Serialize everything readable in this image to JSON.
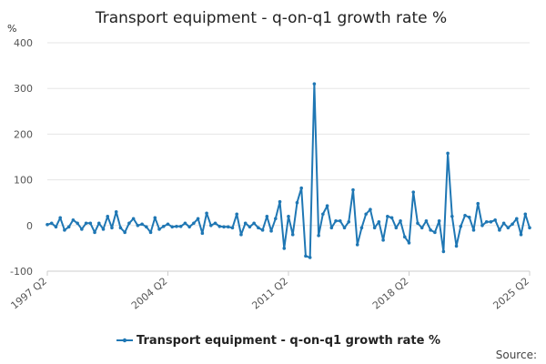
{
  "chart_data": {
    "type": "line",
    "title": "Transport equipment - q-on-q1 growth rate %",
    "unit_label": "%",
    "ylim": [
      -100,
      400
    ],
    "yticks": [
      "-100",
      "0",
      "100",
      "200",
      "300",
      "400"
    ],
    "xtick_labels": [
      "1997 Q2",
      "2004 Q2",
      "2011 Q2",
      "2018 Q2",
      "2025 Q2"
    ],
    "grid": true,
    "legend_position": "bottom",
    "series": [
      {
        "name": "Transport equipment - q-on-q1 growth rate %",
        "color": "#1f77b4",
        "values": [
          2,
          5,
          -3,
          17,
          -10,
          -3,
          12,
          5,
          -8,
          5,
          5,
          -15,
          5,
          -8,
          20,
          -5,
          30,
          -5,
          -15,
          5,
          15,
          0,
          3,
          -3,
          -15,
          17,
          -8,
          -2,
          3,
          -3,
          -2,
          -2,
          5,
          -3,
          5,
          15,
          -17,
          27,
          0,
          5,
          -2,
          -3,
          -3,
          -5,
          25,
          -20,
          5,
          -3,
          5,
          -5,
          -10,
          20,
          -12,
          15,
          52,
          -50,
          20,
          -20,
          50,
          82,
          -67,
          -70,
          310,
          -22,
          25,
          43,
          -5,
          10,
          10,
          -5,
          8,
          78,
          -42,
          -5,
          25,
          35,
          -5,
          8,
          -32,
          20,
          17,
          -5,
          10,
          -25,
          -38,
          73,
          5,
          -5,
          10,
          -10,
          -15,
          10,
          -57,
          158,
          20,
          -45,
          -2,
          22,
          18,
          -10,
          48,
          0,
          8,
          8,
          12,
          -10,
          5,
          -5,
          3,
          15,
          -20,
          25,
          -5
        ]
      }
    ]
  },
  "source_label": "Source:"
}
